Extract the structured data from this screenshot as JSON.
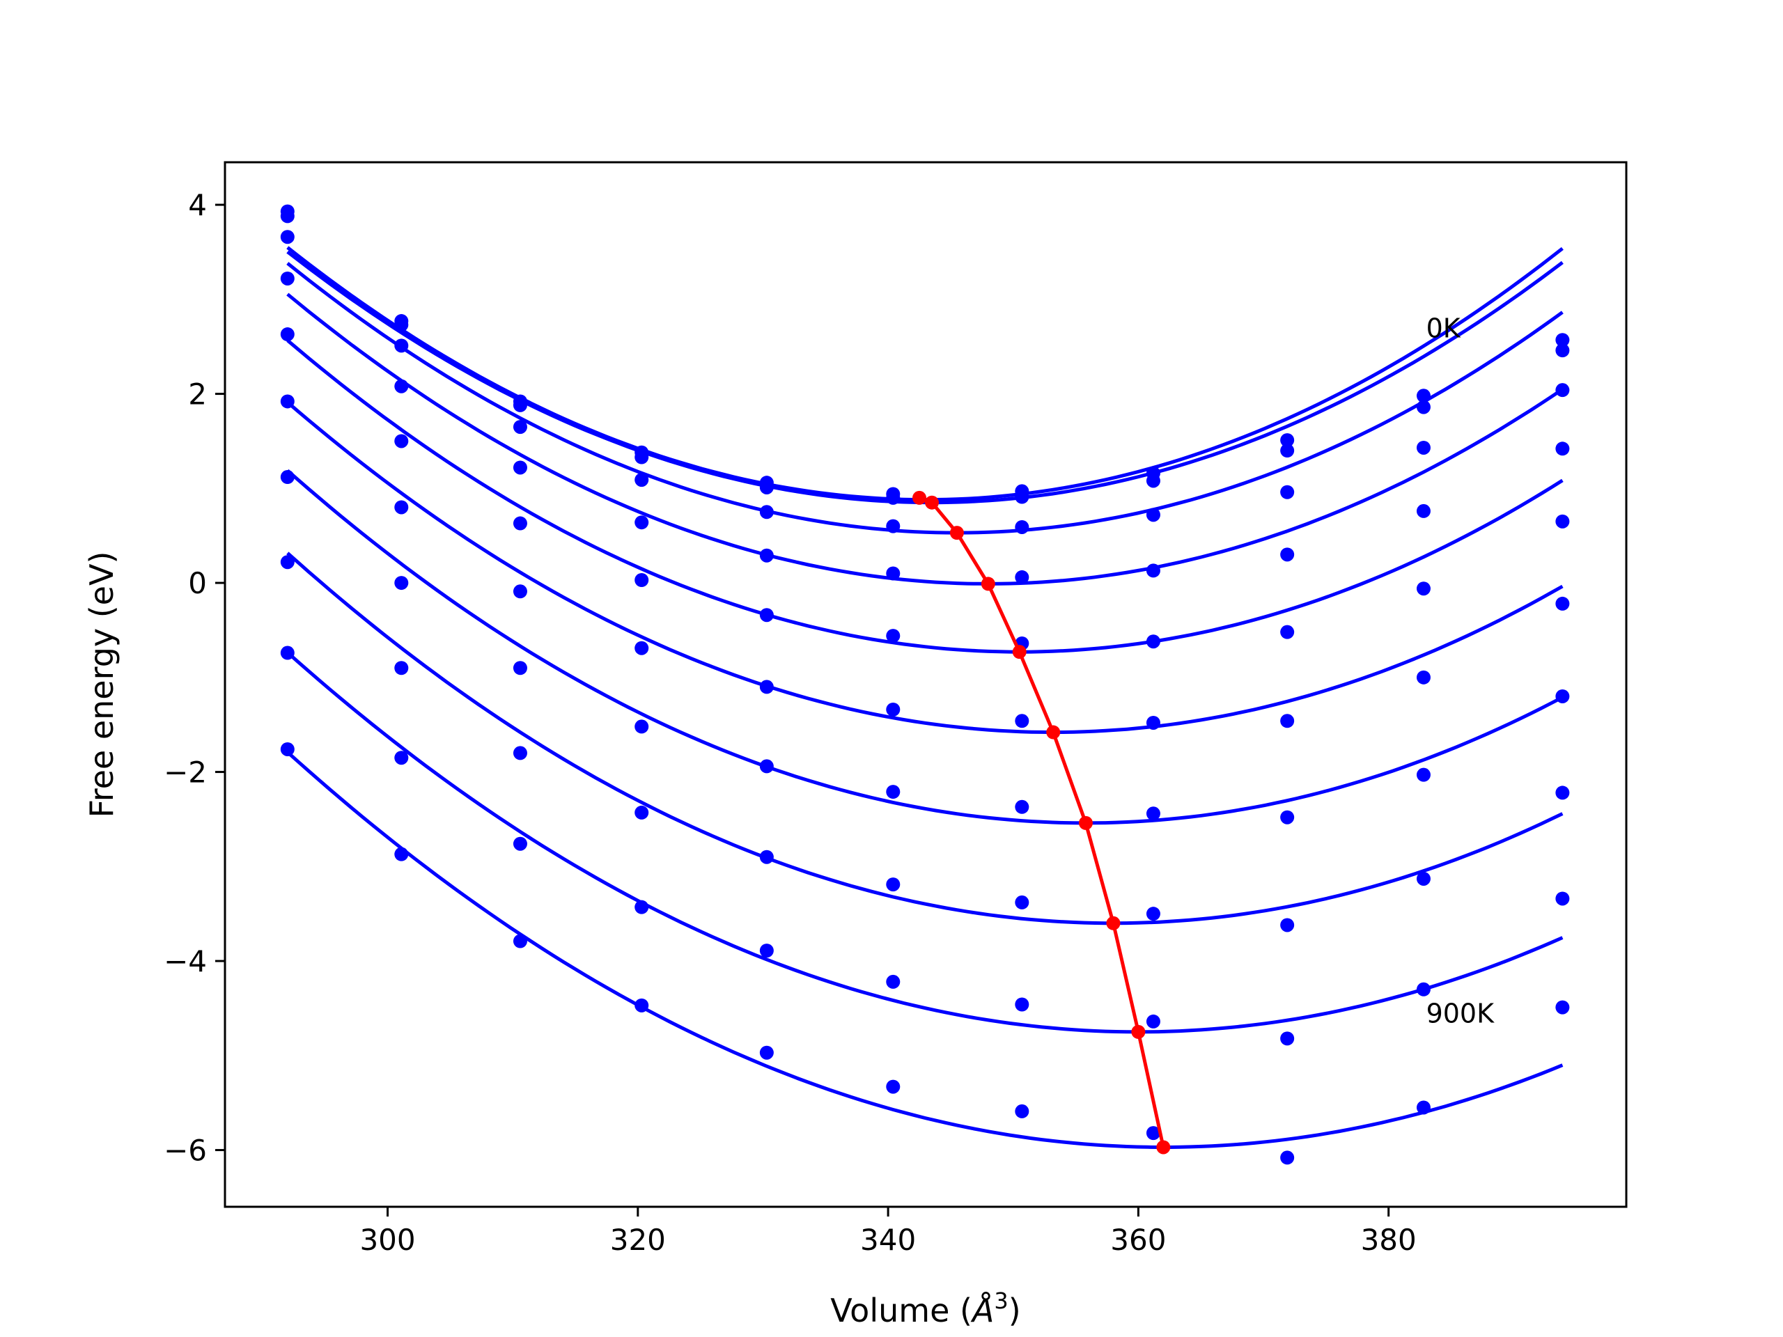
{
  "chart_data": {
    "type": "scatter",
    "title": "",
    "xlabel": "Volume (Å³)",
    "xlabel_parts": {
      "base": "Volume (",
      "symbol": "Å",
      "sup": "3",
      "close": ")"
    },
    "ylabel": "Free energy (eV)",
    "xlim": [
      287,
      399
    ],
    "ylim": [
      -6.6,
      4.45
    ],
    "xticks": [
      300,
      320,
      340,
      360,
      380
    ],
    "yticks": [
      4,
      2,
      0,
      -2,
      -4,
      -6
    ],
    "xtick_labels": [
      "300",
      "320",
      "340",
      "360",
      "380"
    ],
    "ytick_labels": [
      "4",
      "2",
      "0",
      "−2",
      "−4",
      "−6"
    ],
    "grid": false,
    "legend": "none",
    "annotations": [
      {
        "text": "0K",
        "x": 383,
        "y": 2.7
      },
      {
        "text": "900K",
        "x": 383,
        "y": -4.55
      }
    ],
    "volumes": [
      292,
      301.1,
      310.6,
      320.3,
      330.3,
      340.4,
      350.7,
      361.2,
      371.9,
      382.8,
      393.9
    ],
    "series": [
      {
        "name": "0K",
        "E": [
          3.93,
          2.77,
          1.92,
          1.38,
          1.06,
          0.94,
          0.97,
          1.16,
          1.51,
          1.98,
          2.57
        ],
        "fit": {
          "a": 0.001026,
          "v0": 343,
          "e0": 0.88
        }
      },
      {
        "E": [
          3.88,
          2.73,
          1.88,
          1.33,
          1.01,
          0.9,
          0.91,
          1.08,
          1.4,
          1.86,
          2.46
        ],
        "fit": {
          "a": 0.001,
          "v0": 343.5,
          "e0": 0.85
        }
      },
      {
        "E": [
          3.66,
          2.51,
          1.65,
          1.09,
          0.75,
          0.6,
          0.59,
          0.72,
          0.96,
          1.43,
          2.04
        ],
        "fit": {
          "a": 0.000996,
          "v0": 345.5,
          "e0": 0.53
        }
      },
      {
        "E": [
          3.22,
          2.08,
          1.22,
          0.64,
          0.29,
          0.1,
          0.06,
          0.13,
          0.3,
          0.76,
          1.42
        ],
        "fit": {
          "a": 0.000977,
          "v0": 348,
          "e0": -0.01
        }
      },
      {
        "E": [
          2.63,
          1.5,
          0.63,
          0.03,
          -0.34,
          -0.56,
          -0.64,
          -0.62,
          -0.52,
          -0.06,
          0.65
        ],
        "fit": {
          "a": 0.000963,
          "v0": 350.5,
          "e0": -0.73
        }
      },
      {
        "E": [
          1.92,
          0.8,
          -0.09,
          -0.69,
          -1.1,
          -1.34,
          -1.46,
          -1.48,
          -1.46,
          -1.0,
          -0.22
        ],
        "fit": {
          "a": 0.000932,
          "v0": 353.2,
          "e0": -1.58
        }
      },
      {
        "E": [
          1.12,
          0.0,
          -0.9,
          -1.52,
          -1.94,
          -2.21,
          -2.37,
          -2.44,
          -2.48,
          -2.03,
          -1.2
        ],
        "fit": {
          "a": 0.000916,
          "v0": 355.8,
          "e0": -2.54
        }
      },
      {
        "E": [
          0.22,
          -0.9,
          -1.8,
          -2.43,
          -2.9,
          -3.19,
          -3.38,
          -3.5,
          -3.62,
          -3.13,
          -2.22
        ],
        "fit": {
          "a": 0.000899,
          "v0": 358,
          "e0": -3.6
        }
      },
      {
        "E": [
          -0.74,
          -1.85,
          -2.76,
          -3.43,
          -3.89,
          -4.22,
          -4.46,
          -4.64,
          -4.82,
          -4.3,
          -3.34
        ],
        "fit": {
          "a": 0.000868,
          "v0": 360,
          "e0": -4.75
        }
      },
      {
        "name": "900K",
        "E": [
          -1.76,
          -2.87,
          -3.79,
          -4.47,
          -4.97,
          -5.33,
          -5.59,
          -5.82,
          -6.08,
          -5.55,
          -4.49
        ],
        "fit": {
          "a": 0.000853,
          "v0": 362,
          "e0": -5.97
        }
      }
    ],
    "minima": {
      "x": [
        342.5,
        343.5,
        345.5,
        348,
        350.5,
        353.2,
        355.8,
        358,
        360,
        362
      ],
      "y": [
        0.9,
        0.85,
        0.53,
        -0.01,
        -0.73,
        -1.58,
        -2.54,
        -3.6,
        -4.75,
        -5.97
      ]
    },
    "colors": {
      "data": "#0000ff",
      "minima": "#ff0000",
      "axes": "#000000"
    }
  }
}
